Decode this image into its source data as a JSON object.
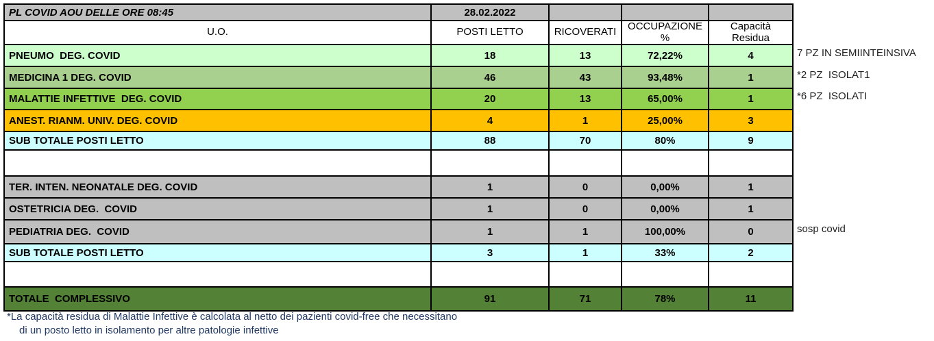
{
  "header": {
    "title": "PL COVID AOU DELLE ORE 08:45",
    "date": "28.02.2022"
  },
  "columns": {
    "uo": "U.O.",
    "posti_letto": "POSTI LETTO",
    "ricoverati": "RICOVERATI",
    "occupazione": "OCCUPAZIONE %",
    "capacita_residua": "Capacità Residua"
  },
  "rows": [
    {
      "label": "PNEUMO  DEG. COVID",
      "posti_letto": "18",
      "ricoverati": "13",
      "occupazione": "72,22%",
      "capacita_residua": "4"
    },
    {
      "label": "MEDICINA 1 DEG. COVID",
      "posti_letto": "46",
      "ricoverati": "43",
      "occupazione": "93,48%",
      "capacita_residua": "1"
    },
    {
      "label": "MALATTIE INFETTIVE  DEG. COVID",
      "posti_letto": "20",
      "ricoverati": "13",
      "occupazione": "65,00%",
      "capacita_residua": "1"
    },
    {
      "label": "ANEST. RIANM. UNIV. DEG. COVID",
      "posti_letto": "4",
      "ricoverati": "1",
      "occupazione": "25,00%",
      "capacita_residua": "3"
    },
    {
      "label": "SUB TOTALE POSTI LETTO",
      "posti_letto": "88",
      "ricoverati": "70",
      "occupazione": "80%",
      "capacita_residua": "9"
    },
    {
      "label": "",
      "posti_letto": "",
      "ricoverati": "",
      "occupazione": "",
      "capacita_residua": ""
    },
    {
      "label": "TER. INTEN. NEONATALE DEG. COVID",
      "posti_letto": "1",
      "ricoverati": "0",
      "occupazione": "0,00%",
      "capacita_residua": "1"
    },
    {
      "label": "OSTETRICIA DEG.  COVID",
      "posti_letto": "1",
      "ricoverati": "0",
      "occupazione": "0,00%",
      "capacita_residua": "1"
    },
    {
      "label": "PEDIATRIA DEG.  COVID",
      "posti_letto": "1",
      "ricoverati": "1",
      "occupazione": "100,00%",
      "capacita_residua": "0"
    },
    {
      "label": "SUB TOTALE POSTI LETTO",
      "posti_letto": "3",
      "ricoverati": "1",
      "occupazione": "33%",
      "capacita_residua": "2"
    },
    {
      "label": "",
      "posti_letto": "",
      "ricoverati": "",
      "occupazione": "",
      "capacita_residua": ""
    },
    {
      "label": "TOTALE  COMPLESSIVO",
      "posti_letto": "91",
      "ricoverati": "71",
      "occupazione": "78%",
      "capacita_residua": "11"
    }
  ],
  "annotations": {
    "pneumo": "7 PZ IN SEMIINTEINSIVA",
    "medicina": "*2 PZ  ISOLAT1",
    "malattie": "*6 PZ  ISOLATI",
    "pediatria": "sosp covid"
  },
  "footnote": {
    "line1": "*La capacità residua di Malattie Infettive è calcolata al netto dei pazienti covid-free che necessitano",
    "line2": "di un posto letto in isolamento per altre patologie infettive"
  },
  "colors": {
    "header_gray": "#C0C0C0",
    "row_pale_green": "#CCFFCC",
    "row_sage_green": "#A9D08E",
    "row_green": "#92D050",
    "row_amber": "#FFC000",
    "row_cyan": "#CCFFFF",
    "row_gray": "#BFBFBF",
    "row_dark_green": "#538135",
    "footnote_blue": "#1F3864",
    "border": "#000000"
  }
}
